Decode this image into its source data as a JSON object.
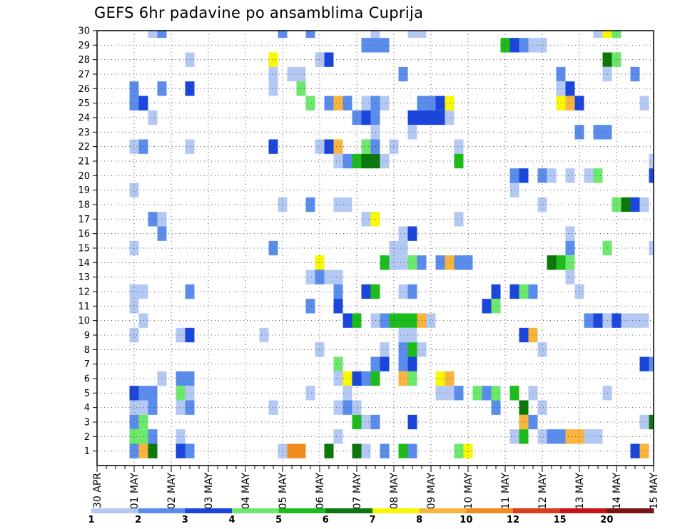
{
  "title": "GEFS 6hr padavine po ansamblima Cuprija",
  "chart_data": {
    "type": "heatmap",
    "title": "GEFS 6hr padavine po ansamblima Cuprija",
    "x_tick_labels": [
      "30 APR",
      "01 MAY",
      "02 MAY",
      "03 MAY",
      "04 MAY",
      "05 MAY",
      "06 MAY",
      "07 MAY",
      "08 MAY",
      "09 MAY",
      "10 MAY",
      "11 MAY",
      "12 MAY",
      "13 MAY",
      "14 MAY",
      "15 MAY"
    ],
    "x_steps_per_day": 4,
    "x_step_count": 61,
    "y_tick_labels": [
      "1",
      "2",
      "3",
      "4",
      "5",
      "6",
      "7",
      "8",
      "9",
      "10",
      "11",
      "12",
      "13",
      "14",
      "15",
      "16",
      "17",
      "18",
      "19",
      "20",
      "21",
      "22",
      "23",
      "24",
      "25",
      "26",
      "27",
      "28",
      "29",
      "30"
    ],
    "y_rows": 31,
    "grid": true,
    "legend_position": "bottom",
    "legend_levels": [
      "1",
      "2",
      "3",
      "4",
      "5",
      "6",
      "7",
      "8",
      "10",
      "12",
      "15",
      "20"
    ],
    "legend_colors": [
      "#b4c8f4",
      "#5a8cec",
      "#1a46dc",
      "#6ce86c",
      "#1cbc1c",
      "#0a780a",
      "#f8f800",
      "#f8b43c",
      "#f08c1c",
      "#dc3c1c",
      "#c81414",
      "#781414"
    ],
    "cells": [
      [
        30,
        7,
        1
      ],
      [
        30,
        8,
        2
      ],
      [
        30,
        21,
        2
      ],
      [
        30,
        24,
        2
      ],
      [
        30,
        31,
        1
      ],
      [
        30,
        35,
        1
      ],
      [
        30,
        36,
        1
      ],
      [
        30,
        55,
        1
      ],
      [
        30,
        56,
        7
      ],
      [
        30,
        57,
        4
      ],
      [
        29,
        30,
        2
      ],
      [
        29,
        31,
        2
      ],
      [
        29,
        32,
        2
      ],
      [
        29,
        45,
        5
      ],
      [
        29,
        46,
        3
      ],
      [
        29,
        47,
        2
      ],
      [
        29,
        48,
        1
      ],
      [
        29,
        49,
        1
      ],
      [
        28,
        11,
        1
      ],
      [
        28,
        20,
        7
      ],
      [
        28,
        25,
        1
      ],
      [
        28,
        26,
        3
      ],
      [
        28,
        56,
        6
      ],
      [
        28,
        57,
        4
      ],
      [
        27,
        20,
        1
      ],
      [
        27,
        22,
        1
      ],
      [
        27,
        23,
        1
      ],
      [
        27,
        34,
        2
      ],
      [
        27,
        51,
        2
      ],
      [
        27,
        56,
        1
      ],
      [
        27,
        59,
        2
      ],
      [
        26,
        5,
        2
      ],
      [
        26,
        8,
        2
      ],
      [
        26,
        11,
        3
      ],
      [
        26,
        20,
        1
      ],
      [
        26,
        23,
        4
      ],
      [
        26,
        51,
        1
      ],
      [
        26,
        52,
        3
      ],
      [
        25,
        5,
        2
      ],
      [
        25,
        6,
        3
      ],
      [
        25,
        24,
        4
      ],
      [
        25,
        26,
        2
      ],
      [
        25,
        27,
        8
      ],
      [
        25,
        28,
        2
      ],
      [
        25,
        30,
        1
      ],
      [
        25,
        31,
        2
      ],
      [
        25,
        32,
        1
      ],
      [
        25,
        36,
        2
      ],
      [
        25,
        37,
        2
      ],
      [
        25,
        38,
        3
      ],
      [
        25,
        39,
        7
      ],
      [
        25,
        51,
        7
      ],
      [
        25,
        52,
        8
      ],
      [
        25,
        53,
        3
      ],
      [
        25,
        60,
        1
      ],
      [
        24,
        7,
        1
      ],
      [
        24,
        29,
        2
      ],
      [
        24,
        30,
        3
      ],
      [
        24,
        31,
        2
      ],
      [
        24,
        35,
        3
      ],
      [
        24,
        36,
        3
      ],
      [
        24,
        37,
        3
      ],
      [
        24,
        38,
        3
      ],
      [
        24,
        39,
        1
      ],
      [
        23,
        31,
        1
      ],
      [
        23,
        35,
        1
      ],
      [
        23,
        53,
        2
      ],
      [
        23,
        55,
        2
      ],
      [
        23,
        56,
        2
      ],
      [
        22,
        5,
        1
      ],
      [
        22,
        6,
        2
      ],
      [
        22,
        11,
        1
      ],
      [
        22,
        20,
        3
      ],
      [
        22,
        25,
        1
      ],
      [
        22,
        26,
        3
      ],
      [
        22,
        27,
        8
      ],
      [
        22,
        30,
        4
      ],
      [
        22,
        31,
        2
      ],
      [
        22,
        33,
        1
      ],
      [
        22,
        40,
        1
      ],
      [
        21,
        27,
        1
      ],
      [
        21,
        28,
        2
      ],
      [
        21,
        29,
        5
      ],
      [
        21,
        30,
        6
      ],
      [
        21,
        31,
        6
      ],
      [
        21,
        32,
        1
      ],
      [
        21,
        40,
        5
      ],
      [
        21,
        61,
        1
      ],
      [
        20,
        46,
        2
      ],
      [
        20,
        47,
        3
      ],
      [
        20,
        49,
        2
      ],
      [
        20,
        50,
        1
      ],
      [
        20,
        52,
        1
      ],
      [
        20,
        54,
        1
      ],
      [
        20,
        55,
        4
      ],
      [
        20,
        61,
        3
      ],
      [
        19,
        5,
        1
      ],
      [
        19,
        46,
        1
      ],
      [
        18,
        21,
        1
      ],
      [
        18,
        24,
        2
      ],
      [
        18,
        27,
        1
      ],
      [
        18,
        28,
        1
      ],
      [
        18,
        49,
        1
      ],
      [
        18,
        57,
        4
      ],
      [
        18,
        58,
        6
      ],
      [
        18,
        59,
        3
      ],
      [
        18,
        60,
        1
      ],
      [
        17,
        7,
        2
      ],
      [
        17,
        8,
        1
      ],
      [
        17,
        30,
        1
      ],
      [
        17,
        31,
        7
      ],
      [
        17,
        40,
        1
      ],
      [
        16,
        8,
        2
      ],
      [
        16,
        34,
        1
      ],
      [
        16,
        35,
        3
      ],
      [
        16,
        52,
        1
      ],
      [
        15,
        5,
        1
      ],
      [
        15,
        20,
        2
      ],
      [
        15,
        33,
        1
      ],
      [
        15,
        34,
        1
      ],
      [
        15,
        52,
        2
      ],
      [
        15,
        56,
        4
      ],
      [
        15,
        61,
        1
      ],
      [
        14,
        25,
        7
      ],
      [
        14,
        32,
        5
      ],
      [
        14,
        33,
        1
      ],
      [
        14,
        34,
        1
      ],
      [
        14,
        35,
        4
      ],
      [
        14,
        36,
        2
      ],
      [
        14,
        38,
        2
      ],
      [
        14,
        39,
        8
      ],
      [
        14,
        40,
        2
      ],
      [
        14,
        41,
        2
      ],
      [
        14,
        50,
        6
      ],
      [
        14,
        51,
        5
      ],
      [
        14,
        52,
        4
      ],
      [
        13,
        24,
        1
      ],
      [
        13,
        25,
        2
      ],
      [
        13,
        26,
        1
      ],
      [
        13,
        27,
        1
      ],
      [
        13,
        52,
        1
      ],
      [
        12,
        5,
        1
      ],
      [
        12,
        6,
        1
      ],
      [
        12,
        11,
        2
      ],
      [
        12,
        27,
        2
      ],
      [
        12,
        30,
        3
      ],
      [
        12,
        31,
        5
      ],
      [
        12,
        34,
        1
      ],
      [
        12,
        35,
        2
      ],
      [
        12,
        44,
        3
      ],
      [
        12,
        46,
        3
      ],
      [
        12,
        47,
        4
      ],
      [
        12,
        48,
        2
      ],
      [
        12,
        53,
        1
      ],
      [
        11,
        5,
        1
      ],
      [
        11,
        24,
        2
      ],
      [
        11,
        27,
        3
      ],
      [
        11,
        43,
        3
      ],
      [
        11,
        44,
        4
      ],
      [
        10,
        6,
        1
      ],
      [
        10,
        28,
        3
      ],
      [
        10,
        29,
        5
      ],
      [
        10,
        31,
        1
      ],
      [
        10,
        32,
        2
      ],
      [
        10,
        33,
        5
      ],
      [
        10,
        34,
        5
      ],
      [
        10,
        35,
        5
      ],
      [
        10,
        36,
        8
      ],
      [
        10,
        37,
        1
      ],
      [
        10,
        54,
        2
      ],
      [
        10,
        55,
        3
      ],
      [
        10,
        56,
        1
      ],
      [
        10,
        57,
        3
      ],
      [
        10,
        58,
        1
      ],
      [
        10,
        59,
        1
      ],
      [
        10,
        60,
        1
      ],
      [
        9,
        5,
        1
      ],
      [
        9,
        10,
        1
      ],
      [
        9,
        11,
        3
      ],
      [
        9,
        19,
        1
      ],
      [
        9,
        34,
        1
      ],
      [
        9,
        35,
        1
      ],
      [
        9,
        47,
        3
      ],
      [
        9,
        48,
        8
      ],
      [
        8,
        25,
        1
      ],
      [
        8,
        32,
        1
      ],
      [
        8,
        34,
        2
      ],
      [
        8,
        35,
        5
      ],
      [
        8,
        36,
        1
      ],
      [
        8,
        49,
        1
      ],
      [
        7,
        27,
        4
      ],
      [
        7,
        31,
        2
      ],
      [
        7,
        32,
        3
      ],
      [
        7,
        34,
        2
      ],
      [
        7,
        35,
        3
      ],
      [
        7,
        60,
        3
      ],
      [
        7,
        61,
        2
      ],
      [
        6,
        8,
        1
      ],
      [
        6,
        10,
        2
      ],
      [
        6,
        11,
        2
      ],
      [
        6,
        27,
        1
      ],
      [
        6,
        28,
        7
      ],
      [
        6,
        29,
        3
      ],
      [
        6,
        30,
        2
      ],
      [
        6,
        31,
        5
      ],
      [
        6,
        34,
        8
      ],
      [
        6,
        35,
        4
      ],
      [
        6,
        38,
        7
      ],
      [
        6,
        39,
        8
      ],
      [
        5,
        5,
        3
      ],
      [
        5,
        6,
        2
      ],
      [
        5,
        7,
        2
      ],
      [
        5,
        10,
        4
      ],
      [
        5,
        11,
        1
      ],
      [
        5,
        24,
        1
      ],
      [
        5,
        28,
        1
      ],
      [
        5,
        38,
        1
      ],
      [
        5,
        39,
        1
      ],
      [
        5,
        40,
        2
      ],
      [
        5,
        42,
        4
      ],
      [
        5,
        43,
        2
      ],
      [
        5,
        44,
        4
      ],
      [
        5,
        46,
        5
      ],
      [
        5,
        48,
        1
      ],
      [
        5,
        56,
        1
      ],
      [
        4,
        5,
        1
      ],
      [
        4,
        6,
        1
      ],
      [
        4,
        7,
        2
      ],
      [
        4,
        10,
        1
      ],
      [
        4,
        11,
        2
      ],
      [
        4,
        20,
        1
      ],
      [
        4,
        27,
        1
      ],
      [
        4,
        28,
        2
      ],
      [
        4,
        29,
        1
      ],
      [
        4,
        44,
        2
      ],
      [
        4,
        47,
        6
      ],
      [
        4,
        49,
        1
      ],
      [
        3,
        5,
        2
      ],
      [
        3,
        6,
        4
      ],
      [
        3,
        29,
        5
      ],
      [
        3,
        30,
        1
      ],
      [
        3,
        31,
        2
      ],
      [
        3,
        35,
        3
      ],
      [
        3,
        47,
        8
      ],
      [
        3,
        48,
        2
      ],
      [
        3,
        60,
        1
      ],
      [
        3,
        61,
        6
      ],
      [
        2,
        5,
        4
      ],
      [
        2,
        6,
        4
      ],
      [
        2,
        7,
        2
      ],
      [
        2,
        10,
        1
      ],
      [
        2,
        27,
        1
      ],
      [
        2,
        46,
        1
      ],
      [
        2,
        47,
        5
      ],
      [
        2,
        49,
        1
      ],
      [
        2,
        50,
        2
      ],
      [
        2,
        51,
        2
      ],
      [
        2,
        52,
        8
      ],
      [
        2,
        53,
        8
      ],
      [
        2,
        54,
        1
      ],
      [
        2,
        55,
        1
      ],
      [
        1,
        5,
        2
      ],
      [
        1,
        6,
        8
      ],
      [
        1,
        7,
        6
      ],
      [
        1,
        10,
        3
      ],
      [
        1,
        11,
        2
      ],
      [
        1,
        21,
        1
      ],
      [
        1,
        22,
        9
      ],
      [
        1,
        23,
        9
      ],
      [
        1,
        26,
        6
      ],
      [
        1,
        29,
        6
      ],
      [
        1,
        30,
        1
      ],
      [
        1,
        32,
        2
      ],
      [
        1,
        34,
        5
      ],
      [
        1,
        35,
        2
      ],
      [
        1,
        40,
        4
      ],
      [
        1,
        41,
        7
      ],
      [
        1,
        59,
        3
      ],
      [
        1,
        60,
        8
      ]
    ]
  }
}
